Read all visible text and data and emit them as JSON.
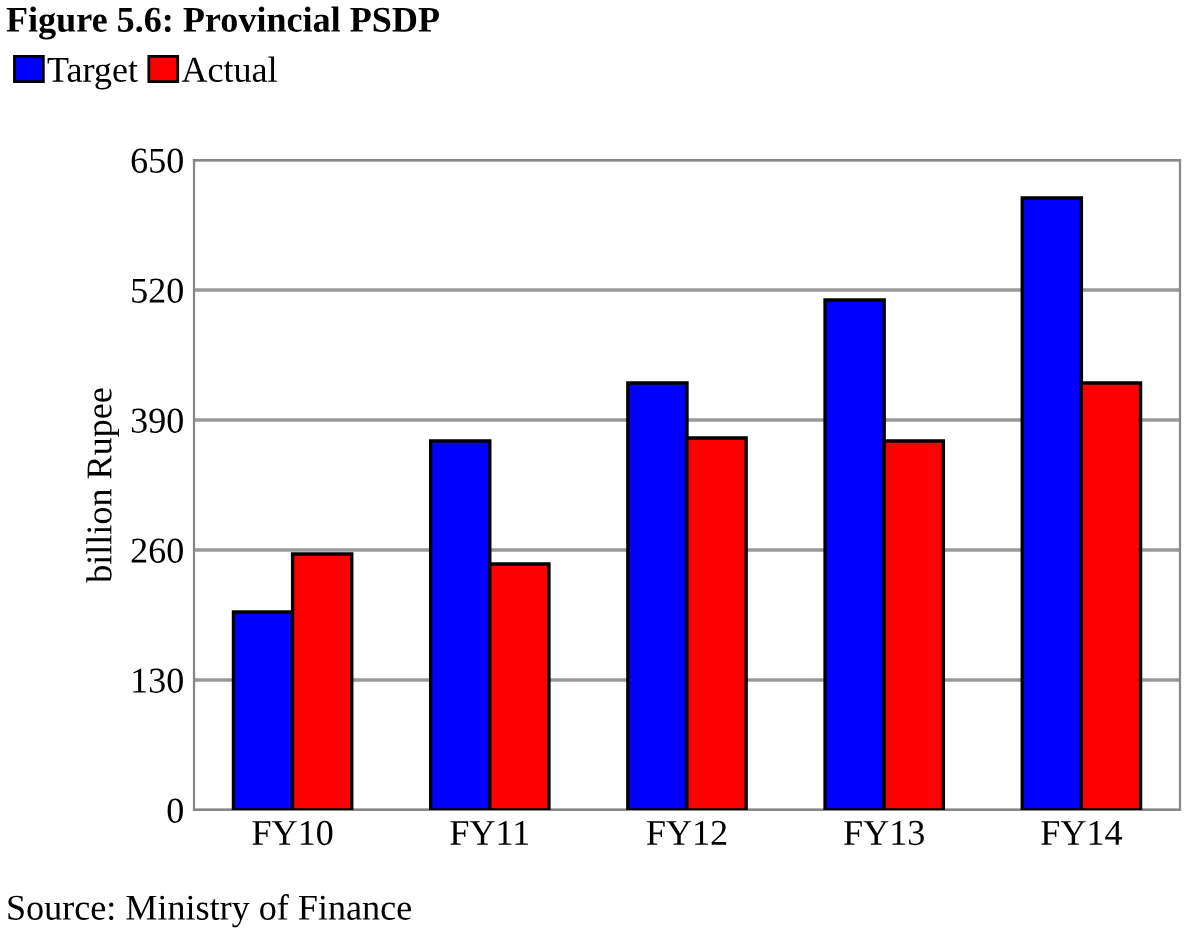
{
  "chart_data": {
    "type": "bar",
    "title": "Figure 5.6: Provincial PSDP",
    "ylabel": "billion Rupee",
    "categories": [
      "FY10",
      "FY11",
      "FY12",
      "FY13",
      "FY14"
    ],
    "series": [
      {
        "name": "Target",
        "color": "#0000ff",
        "values": [
          198,
          369,
          427,
          510,
          612
        ]
      },
      {
        "name": "Actual",
        "color": "#ff0000",
        "values": [
          256,
          246,
          372,
          369,
          427
        ]
      }
    ],
    "ylim": [
      0,
      650
    ],
    "yticks": [
      0,
      130,
      260,
      390,
      520,
      650
    ],
    "grid": "y",
    "legend": "top left",
    "annotations": [
      "Source: Ministry of Finance"
    ]
  }
}
